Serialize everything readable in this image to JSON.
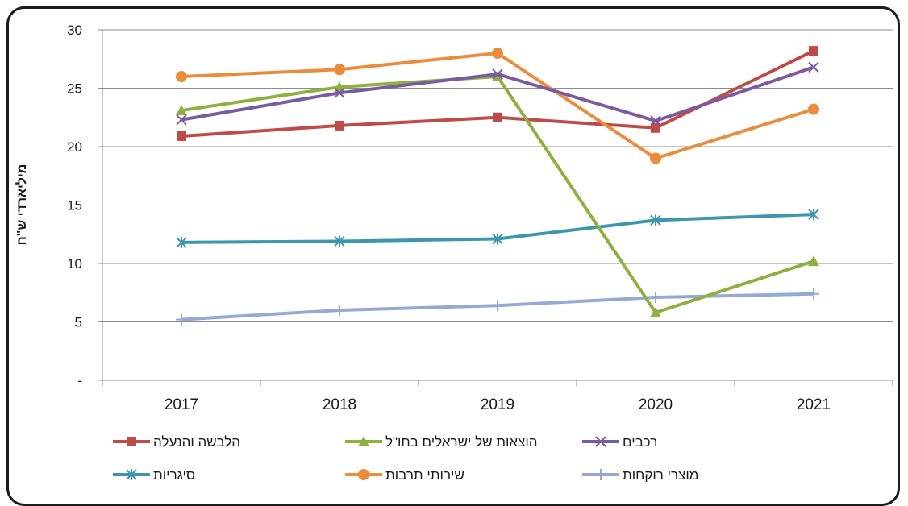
{
  "chart_data": {
    "type": "line",
    "title": "",
    "xlabel": "",
    "ylabel": "מיליארדי ש\"ח",
    "categories": [
      "2017",
      "2018",
      "2019",
      "2020",
      "2021"
    ],
    "ylim": [
      0,
      30
    ],
    "yticks": [
      0,
      5,
      10,
      15,
      20,
      25,
      30
    ],
    "ytick_labels": [
      "-",
      "5",
      "10",
      "15",
      "20",
      "25",
      "30"
    ],
    "grid": true,
    "legend_position": "bottom",
    "series": [
      {
        "name": "הלבשה והנעלה",
        "values": [
          20.9,
          21.8,
          22.5,
          21.6,
          28.2
        ],
        "color": "#be4b48",
        "marker": "square"
      },
      {
        "name": "הוצאות של ישראלים בחו\"ל",
        "values": [
          23.1,
          25.1,
          26.0,
          5.8,
          10.2
        ],
        "color": "#8db13f",
        "marker": "triangle"
      },
      {
        "name": "רכבים",
        "values": [
          22.3,
          24.6,
          26.2,
          22.2,
          26.8
        ],
        "color": "#7a5aa0",
        "marker": "x"
      },
      {
        "name": "סיגריות",
        "values": [
          11.8,
          11.9,
          12.1,
          13.7,
          14.2
        ],
        "color": "#3c96ae",
        "marker": "asterisk"
      },
      {
        "name": "שירותי תרבות",
        "values": [
          26.0,
          26.6,
          28.0,
          19.0,
          23.2
        ],
        "color": "#eb8c3c",
        "marker": "circle"
      },
      {
        "name": "מוצרי רוקחות",
        "values": [
          5.2,
          6.0,
          6.4,
          7.1,
          7.4
        ],
        "color": "#95a9d5",
        "marker": "plus"
      }
    ]
  }
}
